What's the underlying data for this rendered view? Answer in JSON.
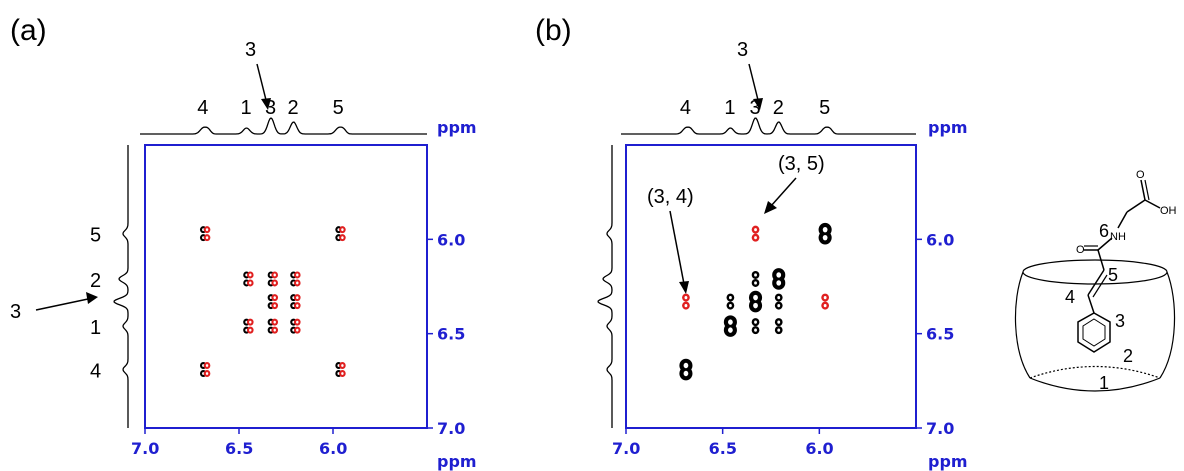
{
  "chart_data": [
    {
      "type": "scatter",
      "panel_label": "(a)",
      "xlabel": "ppm",
      "ylabel": "ppm",
      "x_ticks": [
        "7.0",
        "6.5",
        "6.0"
      ],
      "y_ticks": [
        "6.0",
        "6.5",
        "7.0"
      ],
      "xlim": [
        7.0,
        5.5
      ],
      "ylim": [
        5.5,
        7.0
      ],
      "projection_labels": [
        {
          "label": "4",
          "ppm": 6.69
        },
        {
          "label": "1",
          "ppm": 6.46
        },
        {
          "label": "3",
          "ppm": 6.33
        },
        {
          "label": "2",
          "ppm": 6.21
        },
        {
          "label": "5",
          "ppm": 5.97
        }
      ],
      "projection_arrow_label": "3",
      "series": [
        {
          "color": "#000000",
          "points": [
            [
              6.69,
              5.97
            ],
            [
              6.69,
              6.69
            ],
            [
              5.97,
              5.97
            ],
            [
              5.97,
              6.69
            ],
            [
              6.46,
              6.21
            ],
            [
              6.33,
              6.21
            ],
            [
              6.21,
              6.21
            ],
            [
              6.33,
              6.33
            ],
            [
              6.21,
              6.33
            ],
            [
              6.46,
              6.46
            ],
            [
              6.33,
              6.46
            ],
            [
              6.21,
              6.46
            ]
          ]
        },
        {
          "color": "#e02020",
          "points": [
            [
              6.67,
              5.97
            ],
            [
              6.67,
              6.69
            ],
            [
              5.95,
              5.97
            ],
            [
              5.95,
              6.69
            ],
            [
              6.44,
              6.21
            ],
            [
              6.31,
              6.21
            ],
            [
              6.19,
              6.21
            ],
            [
              6.31,
              6.33
            ],
            [
              6.19,
              6.33
            ],
            [
              6.44,
              6.46
            ],
            [
              6.31,
              6.46
            ],
            [
              6.19,
              6.46
            ]
          ]
        }
      ]
    },
    {
      "type": "scatter",
      "panel_label": "(b)",
      "xlabel": "ppm",
      "ylabel": "ppm",
      "x_ticks": [
        "7.0",
        "6.5",
        "6.0"
      ],
      "y_ticks": [
        "6.0",
        "6.5",
        "7.0"
      ],
      "xlim": [
        7.0,
        5.5
      ],
      "ylim": [
        5.5,
        7.0
      ],
      "projection_labels": [
        {
          "label": "4",
          "ppm": 6.69
        },
        {
          "label": "1",
          "ppm": 6.46
        },
        {
          "label": "3",
          "ppm": 6.33
        },
        {
          "label": "2",
          "ppm": 6.21
        },
        {
          "label": "5",
          "ppm": 5.97
        }
      ],
      "projection_arrow_label": "3",
      "annotations": [
        {
          "text": "(3, 4)",
          "x": 6.33,
          "y": 6.69
        },
        {
          "text": "(3, 5)",
          "x": 6.33,
          "y": 5.97
        }
      ],
      "series": [
        {
          "color": "#000000",
          "points": [
            [
              6.69,
              6.69
            ],
            [
              5.97,
              5.97
            ],
            [
              6.21,
              6.21
            ],
            [
              6.33,
              6.33
            ],
            [
              6.46,
              6.46
            ],
            [
              6.33,
              6.46
            ],
            [
              6.46,
              6.33
            ],
            [
              6.21,
              6.33
            ],
            [
              6.33,
              6.21
            ],
            [
              6.21,
              6.46
            ]
          ]
        },
        {
          "color": "#e02020",
          "points": [
            [
              6.69,
              6.33
            ],
            [
              6.33,
              5.97
            ],
            [
              5.97,
              6.33
            ]
          ]
        }
      ]
    }
  ],
  "molecule_labels": [
    "6",
    "5",
    "4",
    "3",
    "2",
    "1"
  ],
  "molecule_atoms": [
    "OH",
    "O",
    "NH"
  ],
  "colors": {
    "axis": "#1f1fd0",
    "cross_black": "#000000",
    "cross_red": "#e02020"
  }
}
